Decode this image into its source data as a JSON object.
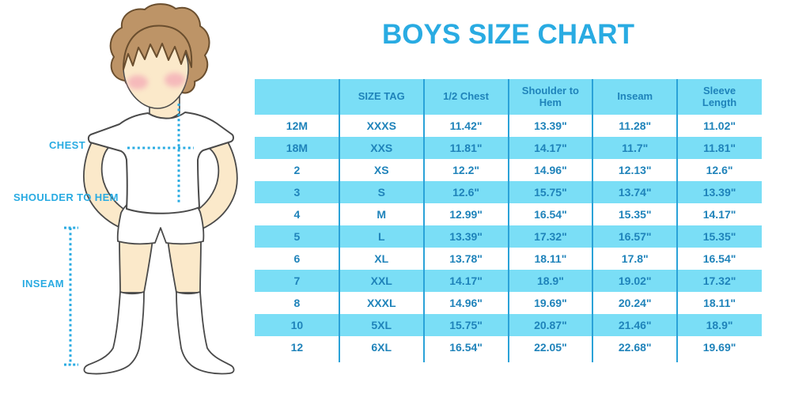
{
  "title": "BOYS SIZE CHART",
  "colors": {
    "accent": "#29ABE2",
    "stripe_bg": "#7ADEF6",
    "table_border": "#2AA2D8",
    "cell_text": "#1F83BA",
    "hair": "#BD9467",
    "skin": "#FBE9CA",
    "cheek": "#F3A1B3",
    "outline": "#4A4A4A"
  },
  "diagram": {
    "labels": {
      "chest": "CHEST",
      "shoulder_to_hem": "SHOULDER TO HEM",
      "inseam": "INSEAM"
    }
  },
  "table": {
    "headers": [
      "",
      "SIZE TAG",
      "1/2 Chest",
      "Shoulder to Hem",
      "Inseam",
      "Sleeve Length"
    ],
    "rows": [
      [
        "12M",
        "XXXS",
        "11.42\"",
        "13.39\"",
        "11.28\"",
        "11.02\""
      ],
      [
        "18M",
        "XXS",
        "11.81\"",
        "14.17\"",
        "11.7\"",
        "11.81\""
      ],
      [
        "2",
        "XS",
        "12.2\"",
        "14.96\"",
        "12.13\"",
        "12.6\""
      ],
      [
        "3",
        "S",
        "12.6\"",
        "15.75\"",
        "13.74\"",
        "13.39\""
      ],
      [
        "4",
        "M",
        "12.99\"",
        "16.54\"",
        "15.35\"",
        "14.17\""
      ],
      [
        "5",
        "L",
        "13.39\"",
        "17.32\"",
        "16.57\"",
        "15.35\""
      ],
      [
        "6",
        "XL",
        "13.78\"",
        "18.11\"",
        "17.8\"",
        "16.54\""
      ],
      [
        "7",
        "XXL",
        "14.17\"",
        "18.9\"",
        "19.02\"",
        "17.32\""
      ],
      [
        "8",
        "XXXL",
        "14.96\"",
        "19.69\"",
        "20.24\"",
        "18.11\""
      ],
      [
        "10",
        "5XL",
        "15.75\"",
        "20.87\"",
        "21.46\"",
        "18.9\""
      ],
      [
        "12",
        "6XL",
        "16.54\"",
        "22.05\"",
        "22.68\"",
        "19.69\""
      ]
    ]
  }
}
